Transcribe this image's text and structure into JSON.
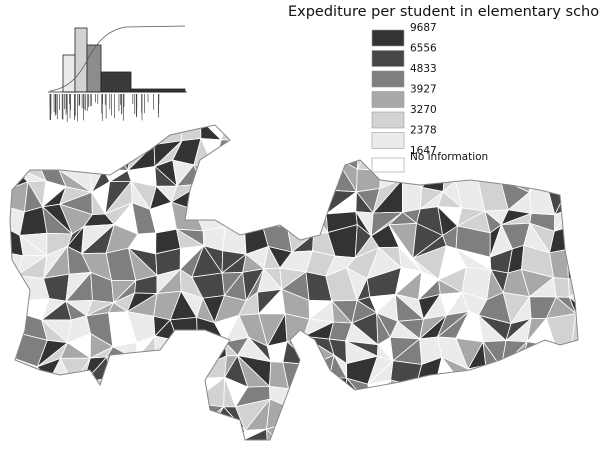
{
  "title": "Expediture per student in elementary school",
  "legend": {
    "breaks": [
      "9687",
      "6556",
      "4833",
      "3927",
      "3270",
      "2378",
      "1647"
    ],
    "colors": [
      "#333333",
      "#474747",
      "#7f7f7f",
      "#a8a8a8",
      "#d2d2d2",
      "#ebebeb"
    ],
    "no_information": {
      "label": "No information",
      "color": "#ffffff"
    }
  }
}
